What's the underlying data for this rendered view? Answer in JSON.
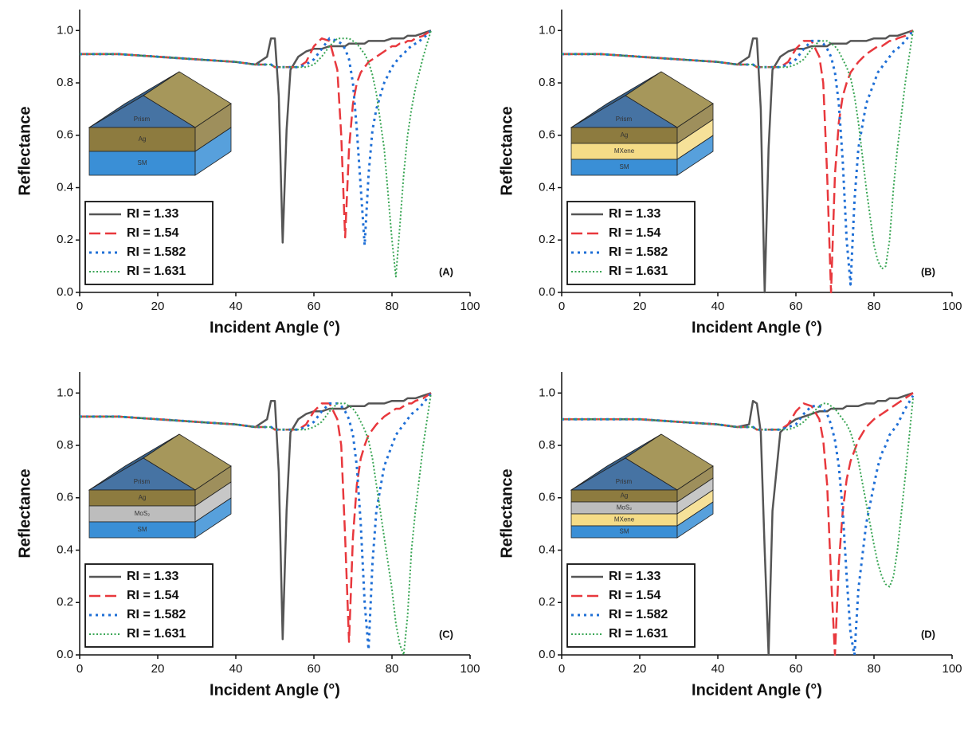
{
  "chart_data": [
    {
      "type": "line",
      "xlabel": "Incident Angle (°)",
      "ylabel": "Reflectance",
      "panel_label": "(A)",
      "xlim": [
        0,
        100
      ],
      "ylim": [
        0,
        1.08
      ],
      "xticks": [
        0,
        20,
        40,
        60,
        80,
        100
      ],
      "yticks": [
        {
          "value": 0,
          "label": "0.0"
        },
        0.2,
        0.4,
        0.6,
        0.8,
        {
          "value": 1,
          "label": "1.0"
        }
      ],
      "inset": [
        {
          "label": "Prism"
        },
        {
          "label": "Ag",
          "color": "#8d7b3f"
        },
        {
          "label": "SM",
          "color": "#3a8fd6"
        }
      ],
      "x": [
        0,
        10,
        20,
        30,
        40,
        45,
        48,
        49,
        50,
        51,
        52,
        53,
        54,
        56,
        58,
        60,
        62,
        64,
        66,
        67,
        68,
        69,
        70,
        71,
        72,
        73,
        74,
        75,
        76,
        78,
        80,
        81,
        82,
        83,
        84,
        85,
        86,
        88,
        90
      ],
      "series": [
        {
          "name": "RI = 1.33",
          "color": "#555555",
          "style": "solid",
          "values": [
            0.91,
            0.91,
            0.9,
            0.89,
            0.88,
            0.87,
            0.9,
            0.97,
            0.97,
            0.75,
            0.19,
            0.62,
            0.85,
            0.9,
            0.92,
            0.93,
            0.93,
            0.94,
            0.94,
            0.94,
            0.94,
            0.95,
            0.95,
            0.95,
            0.95,
            0.95,
            0.96,
            0.96,
            0.96,
            0.96,
            0.97,
            0.97,
            0.97,
            0.97,
            0.98,
            0.98,
            0.98,
            0.99,
            1.0
          ]
        },
        {
          "name": "RI = 1.54",
          "color": "#e8383d",
          "style": "dashed",
          "values": [
            0.91,
            0.91,
            0.9,
            0.89,
            0.88,
            0.87,
            0.87,
            0.87,
            0.86,
            0.86,
            0.86,
            0.86,
            0.86,
            0.86,
            0.88,
            0.94,
            0.97,
            0.96,
            0.85,
            0.6,
            0.21,
            0.55,
            0.72,
            0.8,
            0.84,
            0.86,
            0.88,
            0.89,
            0.9,
            0.92,
            0.94,
            0.94,
            0.95,
            0.95,
            0.96,
            0.96,
            0.97,
            0.98,
            1.0
          ]
        },
        {
          "name": "RI = 1.582",
          "color": "#1f6fd6",
          "style": "dotted",
          "values": [
            0.91,
            0.91,
            0.9,
            0.89,
            0.88,
            0.87,
            0.87,
            0.87,
            0.86,
            0.86,
            0.86,
            0.86,
            0.86,
            0.86,
            0.87,
            0.89,
            0.93,
            0.97,
            0.96,
            0.95,
            0.93,
            0.89,
            0.8,
            0.62,
            0.4,
            0.18,
            0.45,
            0.62,
            0.7,
            0.8,
            0.86,
            0.88,
            0.9,
            0.91,
            0.93,
            0.94,
            0.95,
            0.97,
            1.0
          ]
        },
        {
          "name": "RI = 1.631",
          "color": "#3aa655",
          "style": "fine",
          "values": [
            0.91,
            0.91,
            0.9,
            0.89,
            0.88,
            0.87,
            0.87,
            0.87,
            0.86,
            0.86,
            0.86,
            0.86,
            0.86,
            0.86,
            0.86,
            0.87,
            0.9,
            0.94,
            0.97,
            0.97,
            0.97,
            0.97,
            0.96,
            0.95,
            0.93,
            0.91,
            0.88,
            0.83,
            0.76,
            0.55,
            0.2,
            0.06,
            0.25,
            0.45,
            0.6,
            0.7,
            0.78,
            0.9,
            1.0
          ]
        }
      ]
    },
    {
      "type": "line",
      "xlabel": "Incident Angle (°)",
      "ylabel": "Reflectance",
      "panel_label": "(B)",
      "xlim": [
        0,
        100
      ],
      "ylim": [
        0,
        1.08
      ],
      "xticks": [
        0,
        20,
        40,
        60,
        80,
        100
      ],
      "yticks": [
        {
          "value": 0,
          "label": "0.0"
        },
        0.2,
        0.4,
        0.6,
        0.8,
        {
          "value": 1,
          "label": "1.0"
        }
      ],
      "inset": [
        {
          "label": "Prism"
        },
        {
          "label": "Ag",
          "color": "#8d7b3f"
        },
        {
          "label": "MXene",
          "color": "#f5dc87"
        },
        {
          "label": "SM",
          "color": "#3a8fd6"
        }
      ],
      "x": [
        0,
        10,
        20,
        30,
        40,
        45,
        48,
        49,
        50,
        51,
        52,
        53,
        54,
        56,
        58,
        60,
        62,
        64,
        66,
        67,
        68,
        69,
        70,
        71,
        72,
        73,
        74,
        75,
        76,
        78,
        80,
        81,
        82,
        83,
        84,
        85,
        86,
        88,
        90
      ],
      "series": [
        {
          "name": "RI = 1.33",
          "color": "#555555",
          "style": "solid",
          "values": [
            0.91,
            0.91,
            0.9,
            0.89,
            0.88,
            0.87,
            0.9,
            0.97,
            0.97,
            0.7,
            0.0,
            0.55,
            0.85,
            0.9,
            0.92,
            0.93,
            0.93,
            0.94,
            0.94,
            0.94,
            0.94,
            0.95,
            0.95,
            0.95,
            0.95,
            0.95,
            0.96,
            0.96,
            0.96,
            0.96,
            0.97,
            0.97,
            0.97,
            0.97,
            0.98,
            0.98,
            0.98,
            0.99,
            1.0
          ]
        },
        {
          "name": "RI = 1.54",
          "color": "#e8383d",
          "style": "dashed",
          "values": [
            0.91,
            0.91,
            0.9,
            0.89,
            0.88,
            0.87,
            0.87,
            0.87,
            0.86,
            0.86,
            0.86,
            0.86,
            0.86,
            0.86,
            0.88,
            0.93,
            0.96,
            0.96,
            0.9,
            0.8,
            0.45,
            0.0,
            0.45,
            0.65,
            0.75,
            0.8,
            0.84,
            0.86,
            0.88,
            0.91,
            0.93,
            0.94,
            0.94,
            0.95,
            0.96,
            0.96,
            0.97,
            0.98,
            1.0
          ]
        },
        {
          "name": "RI = 1.582",
          "color": "#1f6fd6",
          "style": "dotted",
          "values": [
            0.91,
            0.91,
            0.9,
            0.89,
            0.88,
            0.87,
            0.87,
            0.87,
            0.86,
            0.86,
            0.86,
            0.86,
            0.86,
            0.86,
            0.87,
            0.89,
            0.93,
            0.96,
            0.96,
            0.95,
            0.93,
            0.9,
            0.84,
            0.72,
            0.5,
            0.2,
            0.03,
            0.35,
            0.55,
            0.72,
            0.8,
            0.84,
            0.86,
            0.88,
            0.9,
            0.92,
            0.93,
            0.96,
            1.0
          ]
        },
        {
          "name": "RI = 1.631",
          "color": "#3aa655",
          "style": "fine",
          "values": [
            0.91,
            0.91,
            0.9,
            0.89,
            0.88,
            0.87,
            0.87,
            0.87,
            0.86,
            0.86,
            0.86,
            0.86,
            0.86,
            0.86,
            0.86,
            0.87,
            0.89,
            0.93,
            0.96,
            0.96,
            0.96,
            0.95,
            0.94,
            0.92,
            0.89,
            0.86,
            0.82,
            0.75,
            0.65,
            0.4,
            0.18,
            0.12,
            0.09,
            0.1,
            0.2,
            0.4,
            0.55,
            0.8,
            1.0
          ]
        }
      ]
    },
    {
      "type": "line",
      "xlabel": "Incident Angle (°)",
      "ylabel": "Reflectance",
      "panel_label": "(C)",
      "xlim": [
        0,
        100
      ],
      "ylim": [
        0,
        1.08
      ],
      "xticks": [
        0,
        20,
        40,
        60,
        80,
        100
      ],
      "yticks": [
        {
          "value": 0,
          "label": "0.0"
        },
        0.2,
        0.4,
        0.6,
        0.8,
        {
          "value": 1,
          "label": "1.0"
        }
      ],
      "inset": [
        {
          "label": "Prism"
        },
        {
          "label": "Ag",
          "color": "#8d7b3f"
        },
        {
          "label": "MoS₂",
          "color": "#bdbdbd"
        },
        {
          "label": "SM",
          "color": "#3a8fd6"
        }
      ],
      "x": [
        0,
        10,
        20,
        30,
        40,
        45,
        48,
        49,
        50,
        51,
        52,
        53,
        54,
        56,
        58,
        60,
        62,
        64,
        66,
        67,
        68,
        69,
        70,
        71,
        72,
        73,
        74,
        75,
        76,
        78,
        80,
        81,
        82,
        83,
        84,
        85,
        86,
        88,
        90
      ],
      "series": [
        {
          "name": "RI = 1.33",
          "color": "#555555",
          "style": "solid",
          "values": [
            0.91,
            0.91,
            0.9,
            0.89,
            0.88,
            0.87,
            0.9,
            0.97,
            0.97,
            0.7,
            0.06,
            0.55,
            0.85,
            0.9,
            0.92,
            0.93,
            0.93,
            0.94,
            0.94,
            0.94,
            0.94,
            0.95,
            0.95,
            0.95,
            0.95,
            0.95,
            0.96,
            0.96,
            0.96,
            0.96,
            0.97,
            0.97,
            0.97,
            0.97,
            0.98,
            0.98,
            0.98,
            0.99,
            1.0
          ]
        },
        {
          "name": "RI = 1.54",
          "color": "#e8383d",
          "style": "dashed",
          "values": [
            0.91,
            0.91,
            0.9,
            0.89,
            0.88,
            0.87,
            0.87,
            0.87,
            0.86,
            0.86,
            0.86,
            0.86,
            0.86,
            0.86,
            0.88,
            0.93,
            0.96,
            0.96,
            0.9,
            0.8,
            0.45,
            0.05,
            0.45,
            0.65,
            0.75,
            0.8,
            0.84,
            0.86,
            0.88,
            0.91,
            0.93,
            0.94,
            0.94,
            0.95,
            0.96,
            0.96,
            0.97,
            0.98,
            1.0
          ]
        },
        {
          "name": "RI = 1.582",
          "color": "#1f6fd6",
          "style": "dotted",
          "values": [
            0.91,
            0.91,
            0.9,
            0.89,
            0.88,
            0.87,
            0.87,
            0.87,
            0.86,
            0.86,
            0.86,
            0.86,
            0.86,
            0.86,
            0.87,
            0.89,
            0.93,
            0.96,
            0.96,
            0.95,
            0.93,
            0.9,
            0.84,
            0.72,
            0.5,
            0.2,
            0.02,
            0.35,
            0.55,
            0.72,
            0.8,
            0.84,
            0.86,
            0.88,
            0.9,
            0.92,
            0.93,
            0.96,
            1.0
          ]
        },
        {
          "name": "RI = 1.631",
          "color": "#3aa655",
          "style": "fine",
          "values": [
            0.91,
            0.91,
            0.9,
            0.89,
            0.88,
            0.87,
            0.87,
            0.87,
            0.86,
            0.86,
            0.86,
            0.86,
            0.86,
            0.86,
            0.86,
            0.87,
            0.89,
            0.93,
            0.96,
            0.96,
            0.96,
            0.95,
            0.94,
            0.92,
            0.89,
            0.86,
            0.82,
            0.75,
            0.65,
            0.45,
            0.25,
            0.12,
            0.04,
            0.0,
            0.15,
            0.4,
            0.55,
            0.8,
            1.0
          ]
        }
      ]
    },
    {
      "type": "line",
      "xlabel": "Incident Angle (°)",
      "ylabel": "Reflectance",
      "panel_label": "(D)",
      "xlim": [
        0,
        100
      ],
      "ylim": [
        0,
        1.08
      ],
      "xticks": [
        0,
        20,
        40,
        60,
        80,
        100
      ],
      "yticks": [
        {
          "value": 0,
          "label": "0.0"
        },
        0.2,
        0.4,
        0.6,
        0.8,
        {
          "value": 1,
          "label": "1.0"
        }
      ],
      "inset": [
        {
          "label": "Prism"
        },
        {
          "label": "Ag",
          "color": "#8d7b3f"
        },
        {
          "label": "MoS₂",
          "color": "#bdbdbd"
        },
        {
          "label": "MXene",
          "color": "#f5dc87"
        },
        {
          "label": "SM",
          "color": "#3a8fd6"
        }
      ],
      "x": [
        0,
        10,
        20,
        30,
        40,
        45,
        48,
        49,
        50,
        51,
        52,
        53,
        54,
        56,
        58,
        60,
        62,
        64,
        66,
        67,
        68,
        69,
        70,
        71,
        72,
        73,
        74,
        75,
        76,
        78,
        80,
        81,
        82,
        83,
        84,
        85,
        86,
        88,
        90
      ],
      "series": [
        {
          "name": "RI = 1.33",
          "color": "#555555",
          "style": "solid",
          "values": [
            0.9,
            0.9,
            0.9,
            0.89,
            0.88,
            0.87,
            0.88,
            0.97,
            0.96,
            0.85,
            0.4,
            0.0,
            0.55,
            0.85,
            0.88,
            0.9,
            0.91,
            0.92,
            0.93,
            0.93,
            0.93,
            0.94,
            0.94,
            0.94,
            0.94,
            0.95,
            0.95,
            0.95,
            0.95,
            0.96,
            0.96,
            0.97,
            0.97,
            0.97,
            0.98,
            0.98,
            0.98,
            0.99,
            1.0
          ]
        },
        {
          "name": "RI = 1.54",
          "color": "#e8383d",
          "style": "dashed",
          "values": [
            0.9,
            0.9,
            0.9,
            0.89,
            0.88,
            0.87,
            0.87,
            0.87,
            0.86,
            0.86,
            0.86,
            0.86,
            0.86,
            0.86,
            0.88,
            0.93,
            0.96,
            0.95,
            0.9,
            0.82,
            0.65,
            0.3,
            0.0,
            0.35,
            0.55,
            0.67,
            0.74,
            0.78,
            0.82,
            0.87,
            0.9,
            0.91,
            0.92,
            0.93,
            0.94,
            0.95,
            0.96,
            0.98,
            1.0
          ]
        },
        {
          "name": "RI = 1.582",
          "color": "#1f6fd6",
          "style": "dotted",
          "values": [
            0.9,
            0.9,
            0.9,
            0.89,
            0.88,
            0.87,
            0.87,
            0.87,
            0.86,
            0.86,
            0.86,
            0.86,
            0.86,
            0.86,
            0.87,
            0.88,
            0.92,
            0.95,
            0.95,
            0.94,
            0.92,
            0.88,
            0.82,
            0.72,
            0.55,
            0.3,
            0.08,
            0.0,
            0.25,
            0.5,
            0.65,
            0.72,
            0.77,
            0.8,
            0.84,
            0.86,
            0.88,
            0.94,
            0.99
          ]
        },
        {
          "name": "RI = 1.631",
          "color": "#3aa655",
          "style": "fine",
          "values": [
            0.9,
            0.9,
            0.9,
            0.89,
            0.88,
            0.87,
            0.87,
            0.87,
            0.86,
            0.86,
            0.86,
            0.86,
            0.86,
            0.86,
            0.86,
            0.87,
            0.89,
            0.92,
            0.95,
            0.96,
            0.96,
            0.95,
            0.94,
            0.92,
            0.9,
            0.88,
            0.85,
            0.8,
            0.74,
            0.58,
            0.42,
            0.35,
            0.3,
            0.27,
            0.26,
            0.3,
            0.4,
            0.68,
            0.98
          ]
        }
      ]
    }
  ]
}
